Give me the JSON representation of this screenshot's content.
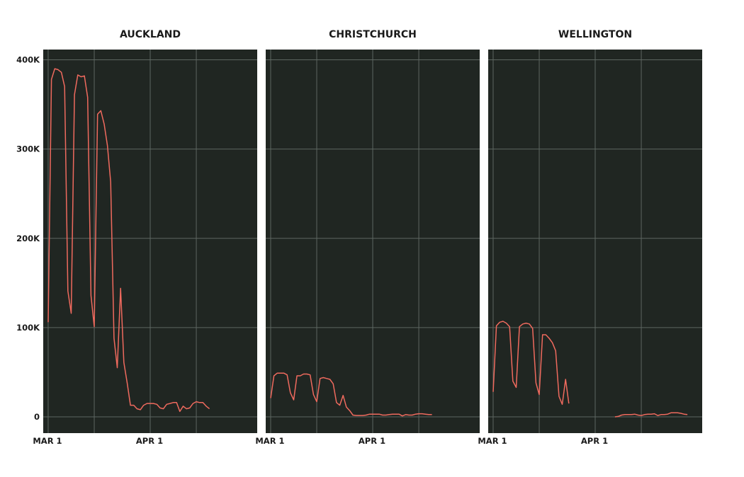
{
  "colors": {
    "panel_bg": "#202622",
    "grid": "#5d6661",
    "line": "#ef6a5e",
    "text": "#1a1a1a"
  },
  "chart_data": {
    "type": "line",
    "grid": true,
    "shared_y_axis": true,
    "ylim": [
      0,
      410000
    ],
    "yticks": [
      0,
      100000,
      200000,
      300000,
      400000
    ],
    "ytick_labels": [
      "0",
      "100K",
      "200K",
      "300K",
      "400K"
    ],
    "x_unit": "day_index_from_mar1",
    "xlim": [
      -1.5,
      63.5
    ],
    "xticks": [
      0,
      31
    ],
    "xtick_labels": [
      "MAR 1",
      "APR 1"
    ],
    "xgrid": [
      0,
      14,
      31,
      45
    ],
    "panels": [
      {
        "title": "AUCKLAND",
        "values": [
          106000,
          378000,
          390000,
          389000,
          386000,
          370000,
          141000,
          116000,
          361000,
          383000,
          381000,
          382000,
          358000,
          136000,
          101000,
          339000,
          343000,
          328000,
          304000,
          263000,
          88000,
          55000,
          144000,
          61000,
          38000,
          13000,
          13000,
          9000,
          8000,
          13000,
          15000,
          15000,
          15000,
          14000,
          10000,
          9000,
          14000,
          15000,
          16000,
          16000,
          6000,
          12000,
          9000,
          10000,
          15000,
          17000,
          16000,
          16000,
          12000,
          9000
        ]
      },
      {
        "title": "CHRISTCHURCH",
        "values": [
          21000,
          46000,
          49000,
          49000,
          49000,
          47000,
          27000,
          19000,
          46000,
          46000,
          48000,
          48000,
          47000,
          25000,
          17000,
          43000,
          44000,
          43000,
          42000,
          37000,
          16000,
          13000,
          24000,
          11000,
          7000,
          2000,
          1500,
          1500,
          1500,
          2000,
          3000,
          3000,
          3000,
          3000,
          2000,
          2000,
          2500,
          3000,
          3000,
          3000,
          1000,
          2500,
          2000,
          2000,
          3000,
          3500,
          3500,
          3000,
          2500,
          2500
        ]
      },
      {
        "title": "WELLINGTON",
        "values": [
          28000,
          102000,
          106000,
          107000,
          105000,
          101000,
          40000,
          33000,
          101000,
          104000,
          105000,
          104000,
          99000,
          38000,
          25000,
          92000,
          92000,
          88000,
          83000,
          74000,
          23000,
          14000,
          42000,
          15000,
          null,
          null,
          null,
          null,
          null,
          null,
          null,
          null,
          null,
          null,
          null,
          null,
          null,
          0,
          500,
          2000,
          2500,
          2500,
          2500,
          3000,
          2000,
          1500,
          2500,
          3000,
          3000,
          3500,
          1500,
          2500,
          2500,
          3000,
          4500,
          4500,
          4500,
          4000,
          3000,
          2500
        ]
      }
    ]
  }
}
